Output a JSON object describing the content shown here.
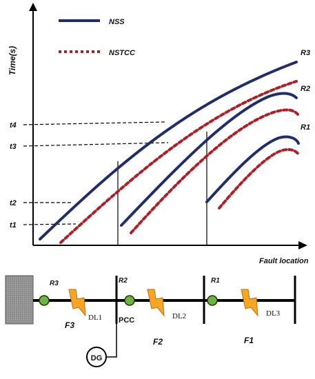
{
  "legend": {
    "nss_label": "NSS",
    "nstcc_label": "NSTCC",
    "nss_color": "#1f2d6b",
    "nstcc_color": "#b01e24"
  },
  "axes": {
    "y_label": "Time(s)",
    "x_label": "Fault location",
    "y_ticks": [
      "t4",
      "t3",
      "t2",
      "t1"
    ]
  },
  "curves": {
    "relay_labels": [
      "R3",
      "R2",
      "R1"
    ]
  },
  "network": {
    "relays": [
      "R3",
      "R2",
      "R1"
    ],
    "faults": [
      "F3",
      "F2",
      "F1"
    ],
    "lines": [
      "DL1",
      "DL2",
      "DL3"
    ],
    "pcc_label": "PCC",
    "dg_label": "DG",
    "relay_color": "#6db33f",
    "grid_color": "#9a9a9a",
    "bolt_color": "#f5a623"
  }
}
